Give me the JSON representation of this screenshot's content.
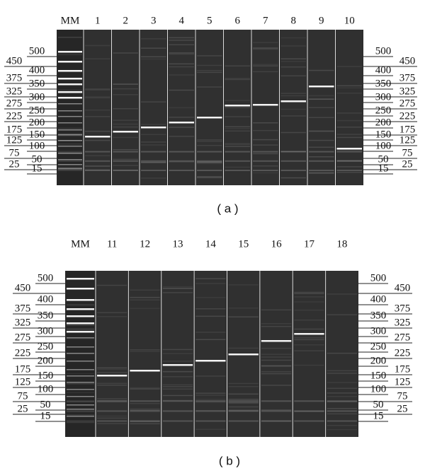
{
  "panels": [
    {
      "lanes": [
        "MM",
        "1",
        "2",
        "3",
        "4",
        "5",
        "6",
        "7",
        "8",
        "9",
        "10"
      ],
      "ladder": [
        "500",
        "450",
        "400",
        "375",
        "350",
        "325",
        "300",
        "275",
        "250",
        "225",
        "200",
        "175",
        "150",
        "125",
        "100",
        "75",
        "50",
        "25",
        "15"
      ],
      "caption": "( a )"
    },
    {
      "lanes": [
        "MM",
        "11",
        "12",
        "13",
        "14",
        "15",
        "16",
        "17",
        "18"
      ],
      "ladder": [
        "500",
        "450",
        "400",
        "375",
        "350",
        "325",
        "300",
        "275",
        "250",
        "225",
        "200",
        "175",
        "150",
        "125",
        "100",
        "75",
        "50",
        "25",
        "15"
      ],
      "caption": "( b )"
    }
  ]
}
